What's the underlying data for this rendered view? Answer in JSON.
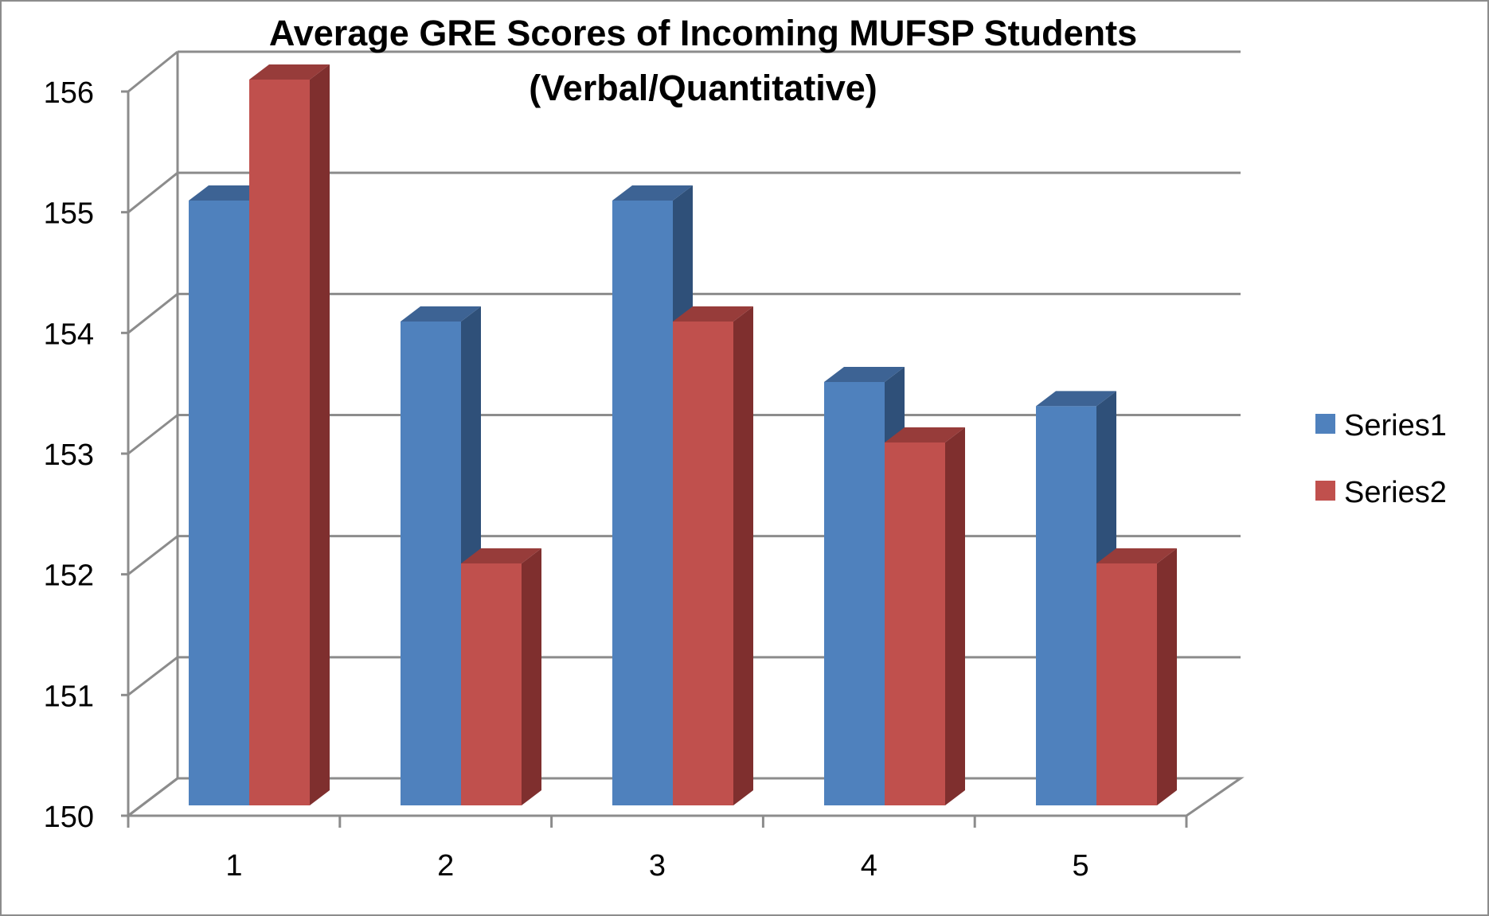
{
  "chart_data": {
    "type": "bar",
    "title_lines": [
      "Average GRE Scores of Incoming MUFSP Students",
      "(Verbal/Quantitative)"
    ],
    "xlabel": "",
    "ylabel": "",
    "categories": [
      "1",
      "2",
      "3",
      "4",
      "5"
    ],
    "series": [
      {
        "name": "Series1",
        "values": [
          155,
          154,
          155,
          153.5,
          153.3
        ]
      },
      {
        "name": "Series2",
        "values": [
          156,
          152,
          154,
          153,
          152
        ]
      }
    ],
    "ylim": [
      150,
      156
    ],
    "yticks": [
      "150",
      "151",
      "152",
      "153",
      "154",
      "155",
      "156"
    ],
    "grid": true,
    "style_3d": true,
    "legend_position": "right",
    "colors": {
      "series1_front": "#4f81bd",
      "series1_side": "#2f5079",
      "series1_top": "#3d6394",
      "series2_front": "#c0504d",
      "series2_side": "#7f2f2e",
      "series2_top": "#973c3a",
      "grid": "#8c8c8c",
      "frame": "#8c8c8c"
    }
  }
}
